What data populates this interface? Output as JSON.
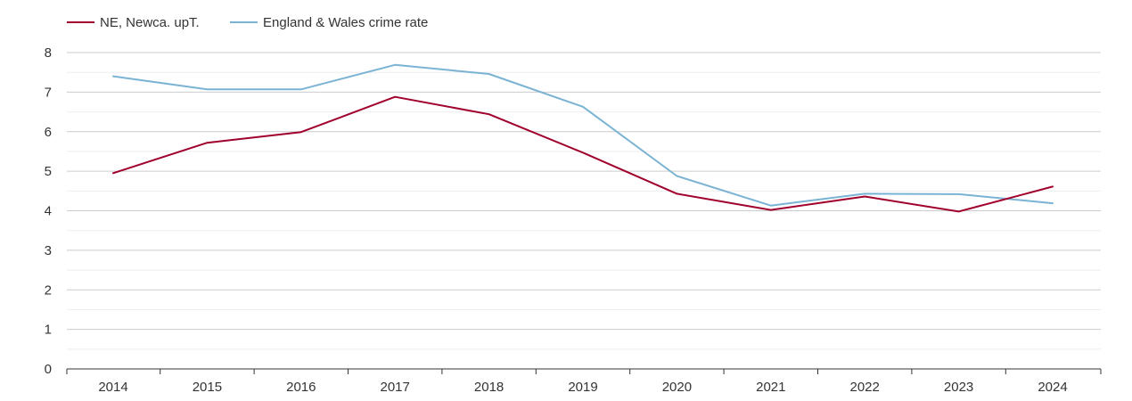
{
  "chart_data": {
    "type": "line",
    "title": "",
    "xlabel": "",
    "ylabel": "",
    "x": [
      "2014",
      "2015",
      "2016",
      "2017",
      "2018",
      "2019",
      "2020",
      "2021",
      "2022",
      "2023",
      "2024"
    ],
    "ylim": [
      0,
      8
    ],
    "yticks": [
      "0",
      "1",
      "2",
      "3",
      "4",
      "5",
      "6",
      "7",
      "8"
    ],
    "grid": true,
    "legend_position": "top-left",
    "series": [
      {
        "name": "NE, Newca. upT.",
        "color": "#a0002b",
        "values": [
          4.95,
          5.72,
          5.99,
          6.88,
          6.44,
          5.47,
          4.43,
          4.02,
          4.36,
          3.98,
          4.61
        ]
      },
      {
        "name": "England & Wales crime rate",
        "color": "#7ab3d3",
        "values": [
          7.4,
          7.07,
          7.07,
          7.69,
          7.46,
          6.63,
          4.88,
          4.13,
          4.43,
          4.42,
          4.19
        ]
      }
    ]
  }
}
